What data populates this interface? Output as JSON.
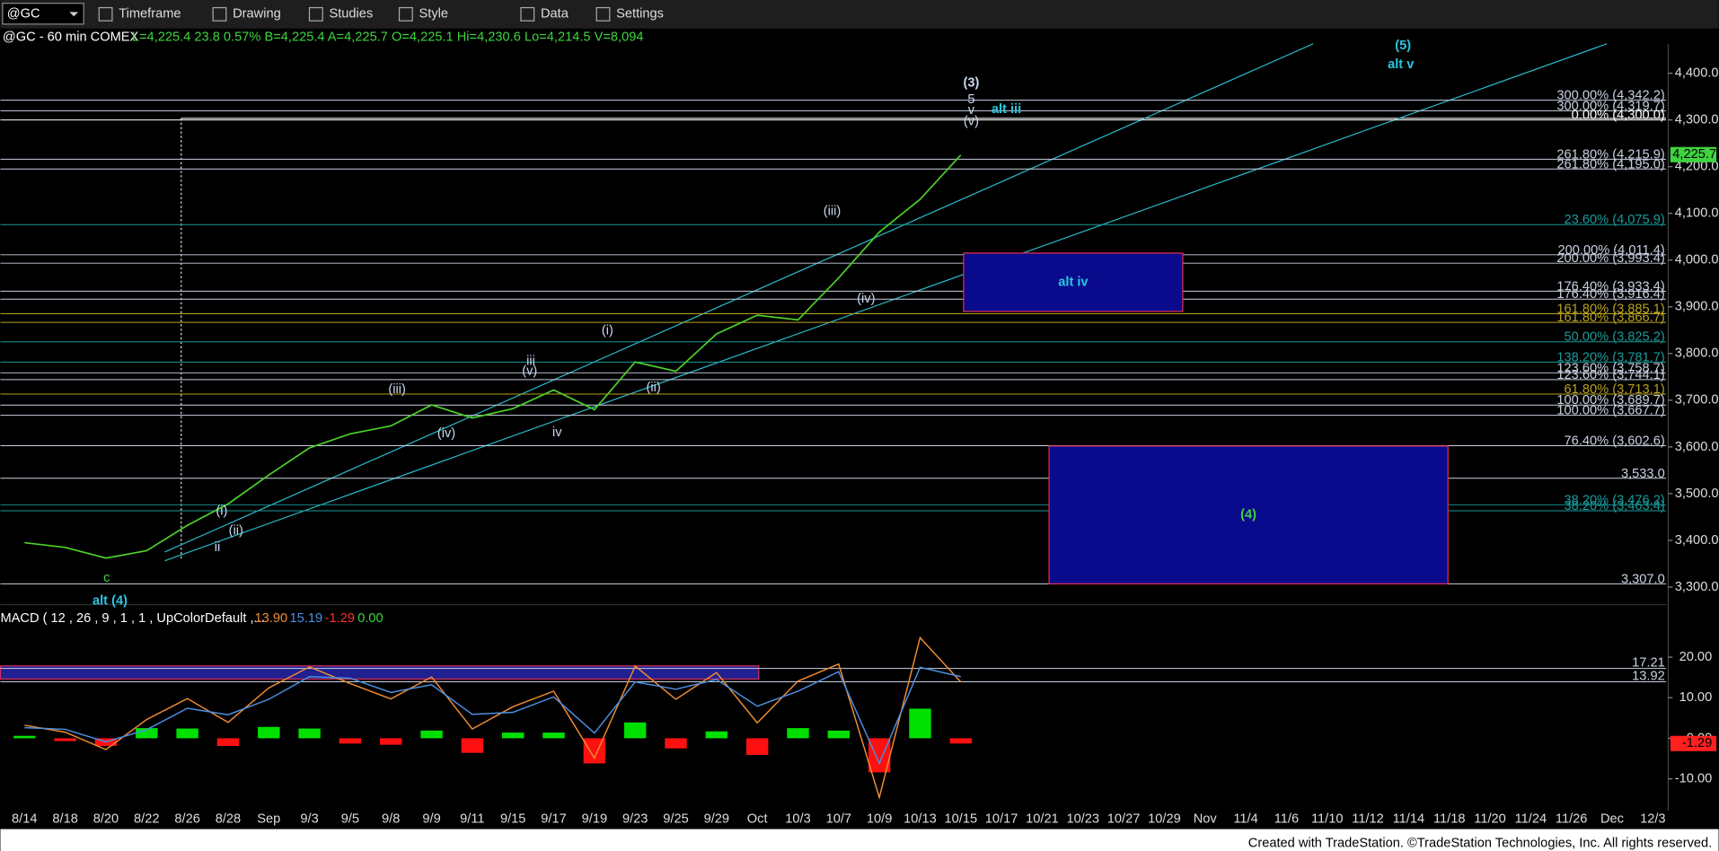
{
  "toolbar": {
    "symbol": "@GC",
    "buttons": [
      "Timeframe",
      "Drawing",
      "Studies",
      "Style",
      "Data",
      "Settings"
    ]
  },
  "quote": {
    "name": "@GC - 60 min  COMEX",
    "values": "L=4,225.4  23.8  0.57%  B=4,225.4  A=4,225.7  O=4,225.1  Hi=4,230.6  Lo=4,214.5  V=8,094"
  },
  "footer": "Created with TradeStation. ©TradeStation Technologies, Inc. All rights reserved.",
  "chart_data": [
    {
      "type": "line",
      "categories": [
        "8/14",
        "8/18",
        "8/20",
        "8/22",
        "8/26",
        "8/28",
        "Sep",
        "9/3",
        "9/5",
        "9/8",
        "9/9",
        "9/11",
        "9/15",
        "9/17",
        "9/19",
        "9/23",
        "9/25",
        "9/29",
        "Oct",
        "10/3",
        "10/7",
        "10/9",
        "10/13",
        "10/15",
        "10/17",
        "10/21",
        "10/23",
        "10/27",
        "10/29",
        "Nov",
        "11/4",
        "11/6",
        "11/10",
        "11/12",
        "11/14",
        "11/18",
        "11/20",
        "11/24",
        "11/26",
        "Dec",
        "12/3"
      ],
      "series": [
        {
          "name": "@GC",
          "color": "#4cd12a",
          "values": [
            3395,
            3385,
            3362,
            3378,
            3432,
            3478,
            3540,
            3598,
            3628,
            3645,
            3690,
            3662,
            3682,
            3722,
            3680,
            3782,
            3762,
            3842,
            3882,
            3872,
            3962,
            4060,
            4130,
            4225,
            null,
            null,
            null,
            null,
            null,
            null,
            null,
            null,
            null,
            null,
            null,
            null,
            null,
            null,
            null,
            null,
            null
          ]
        }
      ],
      "last_price": {
        "value": 4225.7,
        "label": "4,225.7"
      },
      "ylim": [
        3279,
        4463
      ],
      "yticks": [
        {
          "value": 3300,
          "label": "3,300.0"
        },
        {
          "value": 3400,
          "label": "3,400.0"
        },
        {
          "value": 3500,
          "label": "3,500.0"
        },
        {
          "value": 3600,
          "label": "3,600.0"
        },
        {
          "value": 3700,
          "label": "3,700.0"
        },
        {
          "value": 3800,
          "label": "3,800.0"
        },
        {
          "value": 3900,
          "label": "3,900.0"
        },
        {
          "value": 4000,
          "label": "4,000.0"
        },
        {
          "value": 4100,
          "label": "4,100.0"
        },
        {
          "value": 4200,
          "label": "4,200.0"
        },
        {
          "value": 4300,
          "label": "4,300.0"
        },
        {
          "value": 4400,
          "label": "4,400.0"
        }
      ],
      "levels": [
        {
          "value": 4342.2,
          "label": "300.00% (4,342.2)",
          "color": "#c8d0e0"
        },
        {
          "value": 4319.7,
          "label": "300.00% (4,319.7)",
          "color": "#c8d0e0"
        },
        {
          "value": 4300.0,
          "label": "0.00% (4,300.0)",
          "color": "#ffffff"
        },
        {
          "value": 4215.9,
          "label": "261.80% (4,215.9)",
          "color": "#c8d0e0"
        },
        {
          "value": 4195.0,
          "label": "261.80% (4,195.0)",
          "color": "#c8d0e0"
        },
        {
          "value": 4075.9,
          "label": "23.60% (4,075.9)",
          "color": "#1a9a9a"
        },
        {
          "value": 4011.4,
          "label": "200.00% (4,011.4)",
          "color": "#c8d0e0"
        },
        {
          "value": 3993.4,
          "label": "200.00% (3,993.4)",
          "color": "#c8d0e0"
        },
        {
          "value": 3933.4,
          "label": "176.40% (3,933.4)",
          "color": "#c8d0e0"
        },
        {
          "value": 3916.4,
          "label": "176.40% (3,916.4)",
          "color": "#c8d0e0"
        },
        {
          "value": 3885.1,
          "label": "161.80% (3,885.1)",
          "color": "#b8a020"
        },
        {
          "value": 3866.7,
          "label": "161.80% (3,866.7)",
          "color": "#b8a020"
        },
        {
          "value": 3825.2,
          "label": "50.00% (3,825.2)",
          "color": "#1a9a9a"
        },
        {
          "value": 3781.7,
          "label": "138.20% (3,781.7)",
          "color": "#1a9a9a"
        },
        {
          "value": 3758.7,
          "label": "123.60% (3,758.7)",
          "color": "#c8d0e0"
        },
        {
          "value": 3744.1,
          "label": "123.60% (3,744.1)",
          "color": "#c8d0e0"
        },
        {
          "value": 3713.1,
          "label": "61.80% (3,713.1)",
          "color": "#b8a020"
        },
        {
          "value": 3689.7,
          "label": "100.00% (3,689.7)",
          "color": "#c8d0e0"
        },
        {
          "value": 3667.7,
          "label": "100.00% (3,667.7)",
          "color": "#c8d0e0"
        },
        {
          "value": 3602.6,
          "label": "76.40% (3,602.6)",
          "color": "#c8d0e0"
        },
        {
          "value": 3533.0,
          "label": "3,533.0",
          "color": "#c8d0e0"
        },
        {
          "value": 3476.2,
          "label": "38.20% (3,476.2)",
          "color": "#1a9a9a"
        },
        {
          "value": 3463.4,
          "label": "38.20% (3,463.4)",
          "color": "#1a9a9a"
        },
        {
          "value": 3307.0,
          "label": "3,307.0",
          "color": "#c8d0e0"
        }
      ],
      "zones": [
        {
          "label": "alt iv",
          "low": 3890,
          "high": 4015,
          "label_color": "#29c6e0"
        },
        {
          "label": "(4)",
          "low": 3307,
          "high": 3602,
          "label_color": "#3fd43f"
        }
      ],
      "annotations": [
        {
          "text": "(3)",
          "color": "#c8d8f0"
        },
        {
          "text": "5",
          "color": "#c8d8f0"
        },
        {
          "text": "v",
          "color": "#c8d8f0"
        },
        {
          "text": "(v)",
          "color": "#c8d8f0"
        },
        {
          "text": "alt iii",
          "color": "#29c6e0"
        },
        {
          "text": "(5)",
          "color": "#29c6e0"
        },
        {
          "text": "alt v",
          "color": "#29c6e0"
        },
        {
          "text": "(iii)",
          "color": "#c8d8f0"
        },
        {
          "text": "(iv)",
          "color": "#c8d8f0"
        },
        {
          "text": "(i)",
          "color": "#c8d8f0"
        },
        {
          "text": "(ii)",
          "color": "#c8d8f0"
        },
        {
          "text": "iii",
          "color": "#c8d8f0"
        },
        {
          "text": "(v)",
          "color": "#c8d8f0"
        },
        {
          "text": "(iii)",
          "color": "#c8d8f0"
        },
        {
          "text": "(iv)",
          "color": "#c8d8f0"
        },
        {
          "text": "iv",
          "color": "#c8d8f0"
        },
        {
          "text": "(i)",
          "color": "#c8d8f0"
        },
        {
          "text": "(ii)",
          "color": "#c8d8f0"
        },
        {
          "text": "ii",
          "color": "#c8d8f0"
        },
        {
          "text": "c",
          "color": "#3fd43f"
        },
        {
          "text": "alt (4)",
          "color": "#29c6e0"
        }
      ]
    },
    {
      "type": "macd",
      "title": "MACD ( 12 , 26 , 9 , 1 , 1 , UpColorDefault ,...",
      "legend": [
        {
          "label": "13.90",
          "color": "#f08c32"
        },
        {
          "label": "15.19",
          "color": "#4a90e2"
        },
        {
          "label": "-1.29",
          "color": "#ff3030"
        },
        {
          "label": "0.00",
          "color": "#3fd43f"
        }
      ],
      "series": [
        {
          "name": "MACD",
          "color": "#f08c32",
          "values": [
            3.2,
            1.5,
            -2.8,
            4.6,
            9.8,
            3.9,
            12.4,
            17.6,
            13.5,
            9.7,
            15.1,
            2.3,
            7.8,
            11.6,
            -4.9,
            17.8,
            9.6,
            16.2,
            3.8,
            14.1,
            18.3,
            -14.6,
            24.8,
            13.9,
            null,
            null,
            null,
            null,
            null,
            null,
            null,
            null,
            null,
            null,
            null,
            null,
            null,
            null,
            null,
            null,
            null
          ]
        },
        {
          "name": "Signal",
          "color": "#4a90e2",
          "values": [
            2.6,
            2.2,
            -0.9,
            2.1,
            7.4,
            5.8,
            9.6,
            15.2,
            14.8,
            11.3,
            13.2,
            5.9,
            6.4,
            10.2,
            1.3,
            13.9,
            12.1,
            14.5,
            7.9,
            11.6,
            16.4,
            -6.2,
            17.5,
            15.19,
            null,
            null,
            null,
            null,
            null,
            null,
            null,
            null,
            null,
            null,
            null,
            null,
            null,
            null,
            null,
            null,
            null
          ]
        },
        {
          "name": "Histogram",
          "up_color": "#00e000",
          "down_color": "#ff1010",
          "values": [
            0.6,
            -0.7,
            -1.9,
            2.5,
            2.4,
            -1.9,
            2.8,
            2.4,
            -1.3,
            -1.6,
            1.9,
            -3.6,
            1.4,
            1.4,
            -6.2,
            3.9,
            -2.5,
            1.7,
            -4.1,
            2.5,
            1.9,
            -8.4,
            7.3,
            -1.29,
            null,
            null,
            null,
            null,
            null,
            null,
            null,
            null,
            null,
            null,
            null,
            null,
            null,
            null,
            null,
            null,
            null
          ]
        }
      ],
      "levels": [
        {
          "value": 17.21,
          "label": "17.21"
        },
        {
          "value": 13.92,
          "label": "13.92"
        }
      ],
      "last_hist": {
        "value": -1.29,
        "label": "-1.29"
      },
      "ylim": [
        -17.8,
        30.8
      ],
      "yticks": [
        {
          "value": 20,
          "label": "20.00"
        },
        {
          "value": 10,
          "label": "10.00"
        },
        {
          "value": 0,
          "label": "0.00"
        },
        {
          "value": -10,
          "label": "-10.00"
        }
      ]
    }
  ]
}
